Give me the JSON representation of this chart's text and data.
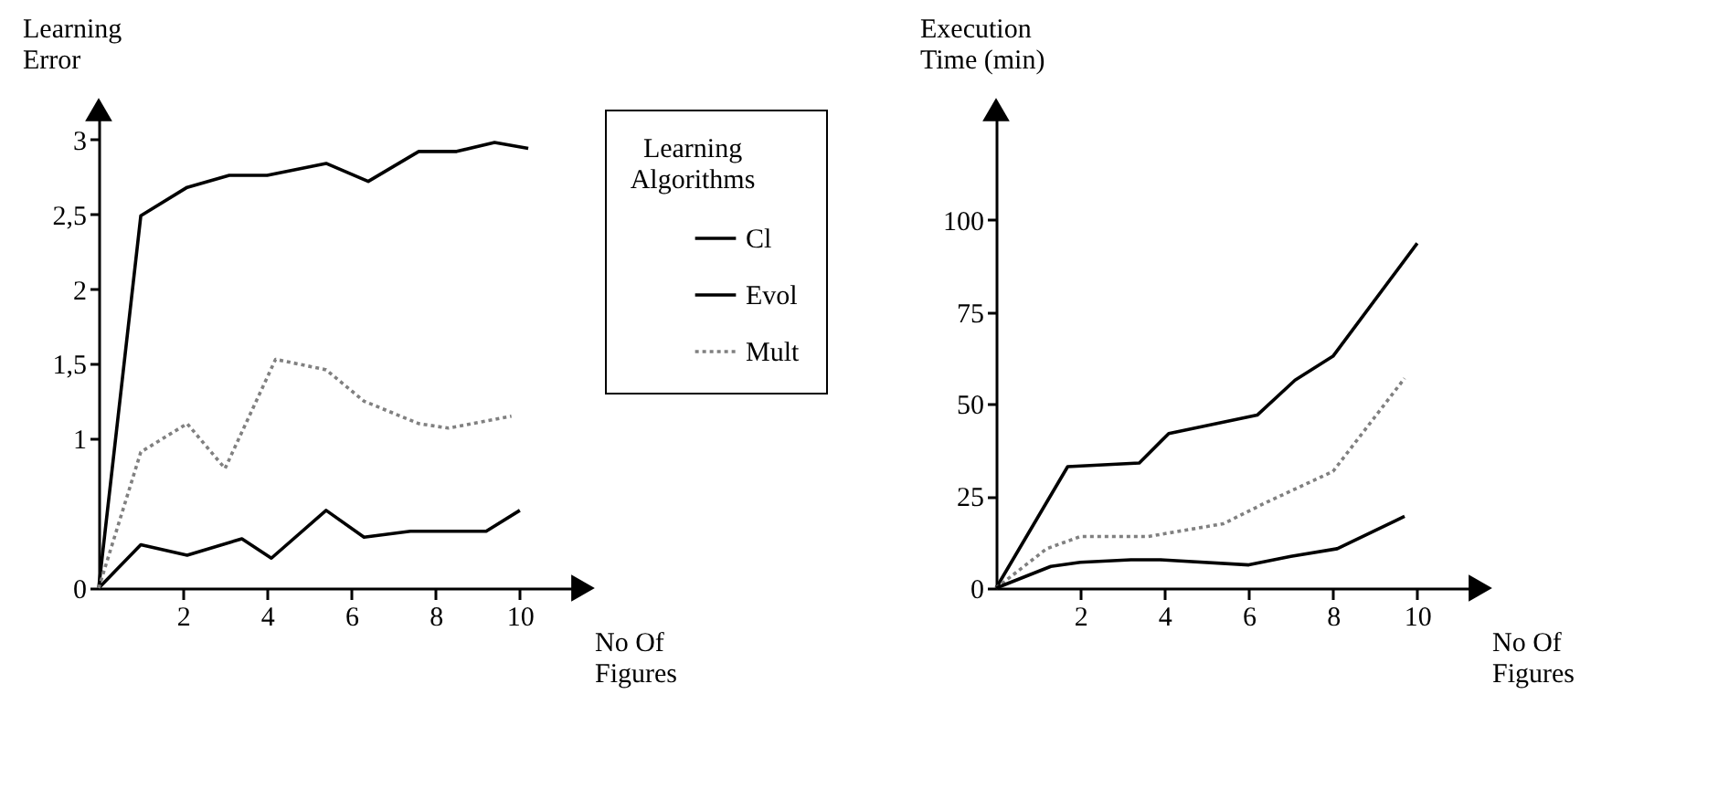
{
  "chart_data": [
    {
      "type": "line",
      "ylabel": "Learning\nError",
      "xlabel": "No Of\nFigures",
      "legend_title": "Learning\nAlgorithms",
      "legend": "right",
      "xlim": [
        0,
        11.5
      ],
      "xticks": [
        2,
        4,
        6,
        8,
        10
      ],
      "ylim": [
        0,
        3.2
      ],
      "yticks": [
        0,
        1,
        {
          "value": 1.5,
          "label": "1,5"
        },
        2,
        {
          "value": 2.5,
          "label": "2,5"
        },
        3
      ],
      "series": [
        {
          "name": "Cl",
          "color": "#000000",
          "x": [
            0,
            1.0,
            2.1,
            3.1,
            4.0,
            5.4,
            6.4,
            7.6,
            8.5,
            9.4,
            10.2
          ],
          "values": [
            0,
            2.49,
            2.68,
            2.76,
            2.76,
            2.84,
            2.72,
            2.92,
            2.92,
            2.98,
            2.94
          ]
        },
        {
          "name": "Evol",
          "color": "#000000",
          "x": [
            0,
            1.0,
            2.1,
            3.4,
            4.1,
            5.4,
            6.3,
            7.4,
            9.2,
            10.0
          ],
          "values": [
            0,
            0.29,
            0.22,
            0.33,
            0.2,
            0.52,
            0.34,
            0.38,
            0.38,
            0.52
          ]
        },
        {
          "name": "Mult",
          "color": "#808080",
          "line_style": "dotted",
          "x": [
            0,
            1.0,
            2.1,
            3.0,
            4.2,
            5.4,
            6.3,
            7.6,
            8.3,
            9.8
          ],
          "values": [
            0,
            0.91,
            1.1,
            0.8,
            1.53,
            1.46,
            1.25,
            1.1,
            1.07,
            1.15
          ]
        }
      ]
    },
    {
      "type": "line",
      "ylabel": "Execution\nTime (min)",
      "xlabel": "No Of\nFigures",
      "xlim": [
        0,
        11.5
      ],
      "xticks": [
        2,
        4,
        6,
        8,
        10
      ],
      "ylim": [
        0,
        130
      ],
      "yticks": [
        0,
        25,
        50,
        75,
        100
      ],
      "series": [
        {
          "color": "#000000",
          "x": [
            0,
            1.7,
            3.4,
            4.1,
            6.2,
            7.1,
            8.0,
            10.0
          ],
          "values": [
            0,
            33,
            34,
            42,
            47,
            56.5,
            63,
            93.7
          ]
        },
        {
          "color": "#808080",
          "line_style": "dotted",
          "x": [
            0,
            1.2,
            2.0,
            3.6,
            5.4,
            6.4,
            8.0,
            9.7
          ],
          "values": [
            0,
            10.7,
            14,
            14,
            17.5,
            23.2,
            31.7,
            57
          ]
        },
        {
          "color": "#000000",
          "x": [
            0,
            1.3,
            2.0,
            3.2,
            3.9,
            6.0,
            7.0,
            8.1,
            9.7
          ],
          "values": [
            0,
            5.9,
            7,
            7.7,
            7.7,
            6.3,
            8.6,
            10.7,
            19.5
          ]
        }
      ]
    }
  ]
}
